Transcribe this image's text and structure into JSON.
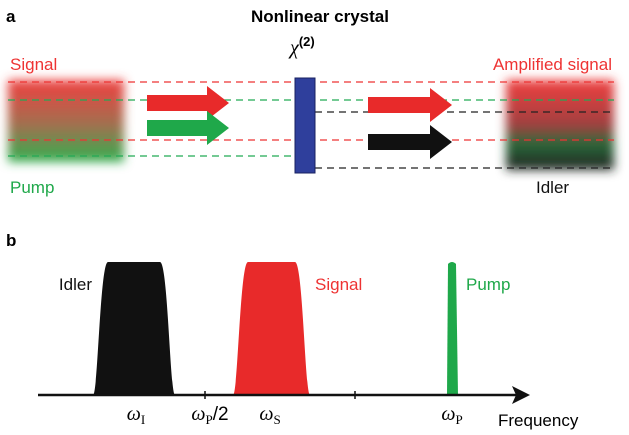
{
  "panel_a": {
    "label": "a",
    "crystal_label": "Nonlinear crystal",
    "chi_symbol": "χ",
    "chi_order": "(2)",
    "input_signal": "Signal",
    "input_pump": "Pump",
    "output_signal": "Amplified signal",
    "output_idler": "Idler"
  },
  "panel_b": {
    "label": "b",
    "peaks": [
      {
        "name": "Idler"
      },
      {
        "name": "Signal"
      },
      {
        "name": "Pump"
      }
    ],
    "ticks": [
      {
        "symbol": "ω",
        "sub": "I"
      },
      {
        "symbol": "ω",
        "sub": "P",
        "suffix": "/2"
      },
      {
        "symbol": "ω",
        "sub": "S"
      },
      {
        "symbol": "ω",
        "sub": "P"
      }
    ],
    "axis_label": "Frequency"
  }
}
